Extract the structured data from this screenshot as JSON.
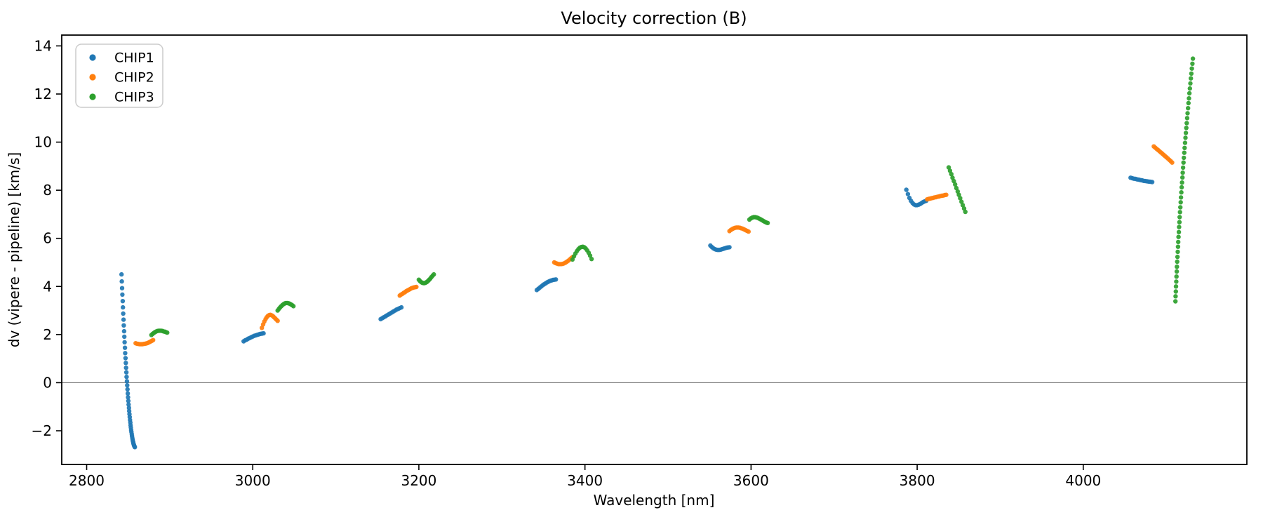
{
  "chart_data": {
    "type": "scatter",
    "title": "Velocity correction (B)",
    "xlabel": "Wavelength [nm]",
    "ylabel": "dv (vipere - pipeline) [km/s]",
    "xlim": [
      2770,
      4197
    ],
    "ylim": [
      -3.4,
      14.45
    ],
    "xticks": [
      2800,
      3000,
      3200,
      3400,
      3600,
      3800,
      4000
    ],
    "yticks": [
      -2,
      0,
      2,
      4,
      6,
      8,
      10,
      12,
      14
    ],
    "grid": false,
    "zero_line": {
      "y": 0,
      "color": "#808080"
    },
    "legend": {
      "position": "upper-left",
      "entries": [
        "CHIP1",
        "CHIP2",
        "CHIP3"
      ]
    },
    "marker": {
      "radius_px": 3.2,
      "opacity": 0.92
    },
    "series": [
      {
        "name": "CHIP1",
        "color": "#1f77b4",
        "segments": [
          {
            "wl": [
              2842.0,
              2842.3,
              2842.7,
              2843.0,
              2843.4,
              2843.7,
              2844.0,
              2844.4,
              2844.7,
              2845.1,
              2845.4,
              2845.7,
              2846.1,
              2846.4,
              2846.8,
              2847.1,
              2847.5,
              2847.8,
              2848.1,
              2848.5,
              2848.8,
              2849.2,
              2849.5,
              2849.8,
              2850.2,
              2850.5,
              2850.9,
              2851.2,
              2851.5,
              2851.9,
              2852.2,
              2852.6,
              2852.9,
              2853.2,
              2853.6,
              2853.9,
              2854.3,
              2854.6,
              2854.9,
              2855.3,
              2855.6,
              2856.0,
              2856.3,
              2856.6,
              2857.0,
              2857.3,
              2857.7,
              2858.0
            ],
            "dv": [
              4.5,
              4.21,
              3.93,
              3.66,
              3.39,
              3.13,
              2.87,
              2.62,
              2.38,
              2.14,
              1.91,
              1.68,
              1.45,
              1.23,
              1.02,
              0.82,
              0.62,
              0.43,
              0.24,
              0.06,
              -0.11,
              -0.28,
              -0.45,
              -0.61,
              -0.76,
              -0.91,
              -1.05,
              -1.18,
              -1.31,
              -1.43,
              -1.55,
              -1.66,
              -1.77,
              -1.87,
              -1.97,
              -2.05,
              -2.14,
              -2.22,
              -2.29,
              -2.36,
              -2.42,
              -2.47,
              -2.52,
              -2.56,
              -2.6,
              -2.63,
              -2.66,
              -2.68
            ]
          },
          {
            "wl": [
              2989,
              2990.8,
              2992.7,
              2994.5,
              2996.4,
              2998.2,
              3000.1,
              3001.9,
              3003.8,
              3005.6,
              3007.5,
              3009.3,
              3011.2,
              3013
            ],
            "dv": [
              1.72,
              1.76,
              1.79,
              1.83,
              1.86,
              1.89,
              1.92,
              1.95,
              1.97,
              1.99,
              2.01,
              2.03,
              2.04,
              2.05
            ]
          },
          {
            "wl": [
              3154,
              3155.9,
              3157.8,
              3159.8,
              3161.7,
              3163.6,
              3165.5,
              3167.5,
              3169.4,
              3171.3,
              3173.2,
              3175.2,
              3177.1,
              3179
            ],
            "dv": [
              2.64,
              2.68,
              2.72,
              2.76,
              2.8,
              2.84,
              2.88,
              2.92,
              2.96,
              3.0,
              3.04,
              3.07,
              3.1,
              3.13
            ]
          },
          {
            "wl": [
              3342,
              3343.8,
              3345.5,
              3347.3,
              3349.1,
              3350.8,
              3352.6,
              3354.4,
              3356.2,
              3357.9,
              3359.7,
              3361.5,
              3363.2,
              3365
            ],
            "dv": [
              3.85,
              3.9,
              3.95,
              4.0,
              4.05,
              4.09,
              4.13,
              4.17,
              4.2,
              4.23,
              4.25,
              4.27,
              4.28,
              4.29
            ]
          },
          {
            "wl": [
              3551,
              3552.8,
              3554.5,
              3556.3,
              3558.1,
              3559.8,
              3561.6,
              3563.4,
              3565.2,
              3566.9,
              3568.7,
              3570.5,
              3572.2,
              3574
            ],
            "dv": [
              5.7,
              5.64,
              5.59,
              5.55,
              5.53,
              5.52,
              5.52,
              5.53,
              5.55,
              5.57,
              5.59,
              5.61,
              5.62,
              5.63
            ]
          },
          {
            "wl": [
              3787,
              3788.8,
              3790.7,
              3792.5,
              3794.4,
              3796.2,
              3798.1,
              3799.9,
              3801.8,
              3803.6,
              3805.5,
              3807.3,
              3809.2,
              3811
            ],
            "dv": [
              8.02,
              7.84,
              7.68,
              7.56,
              7.47,
              7.41,
              7.38,
              7.38,
              7.4,
              7.43,
              7.47,
              7.51,
              7.54,
              7.56
            ]
          },
          {
            "wl": [
              4057,
              4059,
              4061,
              4063,
              4065,
              4067,
              4069,
              4071,
              4073,
              4075,
              4077,
              4079,
              4081,
              4083
            ],
            "dv": [
              8.52,
              8.5,
              8.48,
              8.47,
              8.45,
              8.44,
              8.42,
              8.41,
              8.39,
              8.38,
              8.37,
              8.36,
              8.35,
              8.34
            ]
          }
        ]
      },
      {
        "name": "CHIP2",
        "color": "#ff7f0e",
        "segments": [
          {
            "wl": [
              2859,
              2860.6,
              2862.2,
              2863.8,
              2865.5,
              2867.1,
              2868.7,
              2870.3,
              2871.9,
              2873.5,
              2875.2,
              2876.8,
              2878.4,
              2880
            ],
            "dv": [
              1.64,
              1.62,
              1.61,
              1.6,
              1.6,
              1.6,
              1.61,
              1.62,
              1.63,
              1.65,
              1.68,
              1.71,
              1.74,
              1.77
            ]
          },
          {
            "wl": [
              3011,
              3012.5,
              3013.9,
              3015.4,
              3016.8,
              3018.3,
              3019.8,
              3021.2,
              3022.7,
              3024.2,
              3025.6,
              3027.1,
              3028.5,
              3030
            ],
            "dv": [
              2.28,
              2.42,
              2.54,
              2.64,
              2.72,
              2.78,
              2.81,
              2.82,
              2.8,
              2.77,
              2.72,
              2.67,
              2.62,
              2.57
            ]
          },
          {
            "wl": [
              3177,
              3178.5,
              3180.1,
              3181.6,
              3183.2,
              3184.7,
              3186.2,
              3187.8,
              3189.3,
              3190.8,
              3192.4,
              3193.9,
              3195.5,
              3197
            ],
            "dv": [
              3.62,
              3.66,
              3.69,
              3.73,
              3.76,
              3.8,
              3.83,
              3.86,
              3.89,
              3.92,
              3.94,
              3.96,
              3.97,
              3.98
            ]
          },
          {
            "wl": [
              3363,
              3364.7,
              3366.4,
              3368.1,
              3369.8,
              3371.5,
              3373.2,
              3374.8,
              3376.5,
              3378.2,
              3379.9,
              3381.6,
              3383.3,
              3385
            ],
            "dv": [
              5.0,
              4.97,
              4.95,
              4.93,
              4.93,
              4.93,
              4.94,
              4.96,
              4.99,
              5.03,
              5.07,
              5.12,
              5.17,
              5.22
            ]
          },
          {
            "wl": [
              3574,
              3575.8,
              3577.5,
              3579.3,
              3581.1,
              3582.8,
              3584.6,
              3586.4,
              3588.2,
              3589.9,
              3591.7,
              3593.5,
              3595.2,
              3597
            ],
            "dv": [
              6.3,
              6.35,
              6.39,
              6.42,
              6.44,
              6.45,
              6.45,
              6.44,
              6.42,
              6.4,
              6.37,
              6.34,
              6.31,
              6.28
            ]
          },
          {
            "wl": [
              3812,
              3813.8,
              3815.5,
              3817.3,
              3819.1,
              3820.8,
              3822.6,
              3824.4,
              3826.2,
              3827.9,
              3829.7,
              3831.5,
              3833.2,
              3835
            ],
            "dv": [
              7.62,
              7.64,
              7.65,
              7.67,
              7.68,
              7.7,
              7.71,
              7.73,
              7.74,
              7.76,
              7.77,
              7.78,
              7.8,
              7.81
            ]
          },
          {
            "wl": [
              4085,
              4086.7,
              4088.4,
              4090.1,
              4091.8,
              4093.5,
              4095.2,
              4096.8,
              4098.5,
              4100.2,
              4101.9,
              4103.6,
              4105.3,
              4107
            ],
            "dv": [
              9.82,
              9.77,
              9.72,
              9.67,
              9.62,
              9.57,
              9.52,
              9.47,
              9.42,
              9.37,
              9.32,
              9.26,
              9.21,
              9.15
            ]
          }
        ]
      },
      {
        "name": "CHIP3",
        "color": "#2ca02c",
        "segments": [
          {
            "wl": [
              2878,
              2879.5,
              2880.9,
              2882.4,
              2883.8,
              2885.3,
              2886.8,
              2888.2,
              2889.7,
              2891.2,
              2892.6,
              2894.1,
              2895.5,
              2897
            ],
            "dv": [
              1.98,
              2.03,
              2.07,
              2.1,
              2.13,
              2.15,
              2.16,
              2.16,
              2.16,
              2.15,
              2.13,
              2.12,
              2.1,
              2.08
            ]
          },
          {
            "wl": [
              3030,
              3031.5,
              3032.9,
              3034.4,
              3035.8,
              3037.3,
              3038.8,
              3040.2,
              3041.7,
              3043.2,
              3044.6,
              3046.1,
              3047.5,
              3049
            ],
            "dv": [
              3.0,
              3.07,
              3.13,
              3.18,
              3.23,
              3.27,
              3.3,
              3.31,
              3.31,
              3.3,
              3.28,
              3.25,
              3.22,
              3.18
            ]
          },
          {
            "wl": [
              3200,
              3201.4,
              3202.8,
              3204.2,
              3205.5,
              3206.9,
              3208.3,
              3209.7,
              3211.1,
              3212.5,
              3213.8,
              3215.2,
              3216.6,
              3218
            ],
            "dv": [
              4.28,
              4.22,
              4.18,
              4.15,
              4.14,
              4.14,
              4.16,
              4.19,
              4.23,
              4.28,
              4.33,
              4.39,
              4.45,
              4.5
            ]
          },
          {
            "wl": [
              3385,
              3386.8,
              3388.5,
              3390.3,
              3392.1,
              3393.8,
              3395.6,
              3397.4,
              3399.2,
              3400.9,
              3402.7,
              3404.5,
              3406.2,
              3408
            ],
            "dv": [
              5.12,
              5.25,
              5.37,
              5.47,
              5.55,
              5.61,
              5.64,
              5.65,
              5.63,
              5.58,
              5.5,
              5.4,
              5.28,
              5.14
            ]
          },
          {
            "wl": [
              3598,
              3599.7,
              3601.4,
              3603.1,
              3604.8,
              3606.5,
              3608.2,
              3609.8,
              3611.5,
              3613.2,
              3614.9,
              3616.6,
              3618.3,
              3620
            ],
            "dv": [
              6.78,
              6.83,
              6.86,
              6.88,
              6.88,
              6.87,
              6.85,
              6.82,
              6.79,
              6.76,
              6.72,
              6.69,
              6.66,
              6.64
            ]
          },
          {
            "wl": [
              3838,
              3839.5,
              3841.1,
              3842.6,
              3844.2,
              3845.7,
              3847.2,
              3848.8,
              3850.3,
              3851.8,
              3853.4,
              3854.9,
              3856.5,
              3858
            ],
            "dv": [
              8.95,
              8.81,
              8.67,
              8.52,
              8.38,
              8.24,
              8.09,
              7.95,
              7.81,
              7.67,
              7.52,
              7.38,
              7.24,
              7.1
            ]
          },
          {
            "wl": [
              4111.0,
              4111.2,
              4111.5,
              4111.7,
              4112.0,
              4112.3,
              4112.6,
              4112.8,
              4113.1,
              4113.4,
              4113.8,
              4114.1,
              4114.4,
              4114.7,
              4115.1,
              4115.4,
              4115.8,
              4116.1,
              4116.5,
              4116.9,
              4117.3,
              4117.7,
              4118.1,
              4118.5,
              4118.9,
              4119.4,
              4119.8,
              4120.2,
              4120.7,
              4121.1,
              4121.6,
              4122.1,
              4122.6,
              4123.1,
              4123.6,
              4124.1,
              4124.6,
              4125.1,
              4125.6,
              4126.2,
              4126.7,
              4127.3,
              4127.8,
              4128.4,
              4129.0,
              4129.6,
              4130.2,
              4130.8,
              4131.4,
              4132.0
            ],
            "dv": [
              3.38,
              3.59,
              3.79,
              4.0,
              4.2,
              4.41,
              4.62,
              4.82,
              5.03,
              5.23,
              5.44,
              5.65,
              5.85,
              6.06,
              6.26,
              6.47,
              6.67,
              6.88,
              7.09,
              7.29,
              7.5,
              7.7,
              7.91,
              8.12,
              8.32,
              8.53,
              8.73,
              8.94,
              9.15,
              9.35,
              9.56,
              9.76,
              9.97,
              10.18,
              10.38,
              10.59,
              10.79,
              11.0,
              11.2,
              11.41,
              11.62,
              11.82,
              12.03,
              12.23,
              12.44,
              12.65,
              12.85,
              13.06,
              13.26,
              13.47
            ]
          }
        ]
      }
    ]
  }
}
